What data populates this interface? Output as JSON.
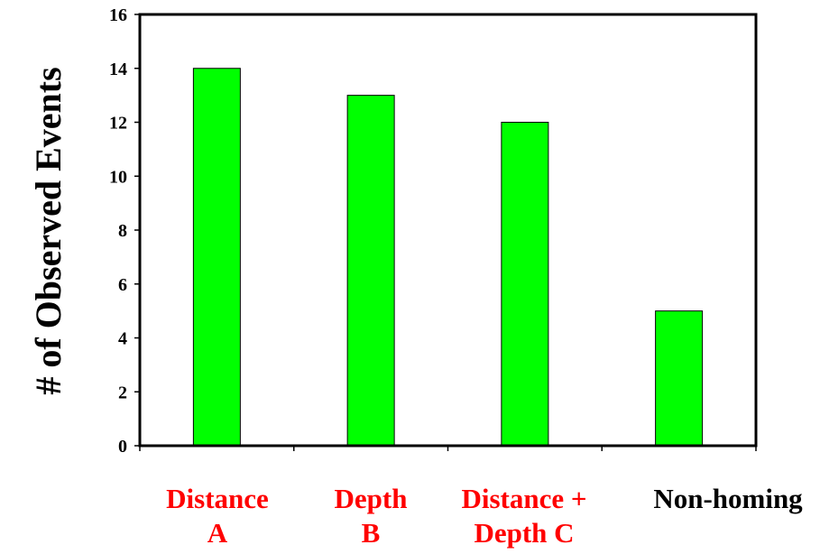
{
  "chart_data": {
    "type": "bar",
    "title": "",
    "xlabel": "",
    "ylabel": "# of Observed Events",
    "ylim": [
      0,
      16
    ],
    "yticks": [
      0,
      2,
      4,
      6,
      8,
      10,
      12,
      14,
      16
    ],
    "grid": false,
    "legend": "none",
    "categories": [
      {
        "lines": [
          "Distance",
          "A"
        ],
        "color": "#ff0000"
      },
      {
        "lines": [
          "Depth",
          "B"
        ],
        "color": "#ff0000"
      },
      {
        "lines": [
          "Distance +",
          "Depth C"
        ],
        "color": "#ff0000"
      },
      {
        "lines": [
          "Non-homing"
        ],
        "color": "#000000"
      }
    ],
    "values": [
      14,
      13,
      12,
      5
    ],
    "bar_color": "#00ff00",
    "bar_edge_color": "#000000"
  }
}
